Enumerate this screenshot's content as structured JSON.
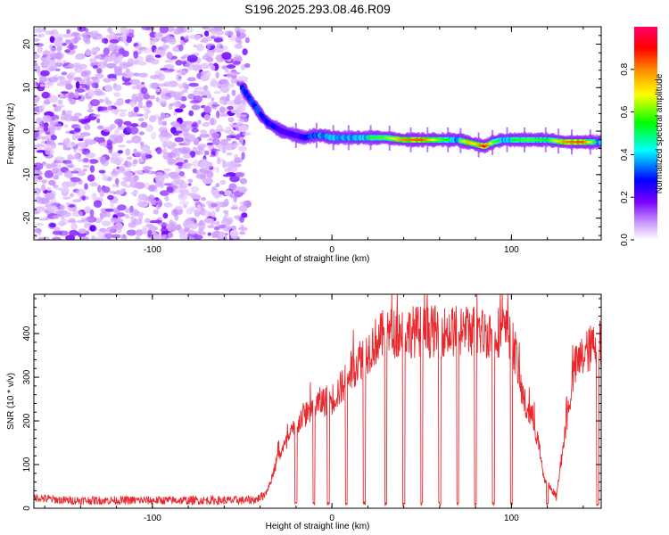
{
  "title": "S196.2025.293.08.46.R09",
  "chart_data": [
    {
      "type": "heatmap",
      "xlabel": "Height of straight line (km)",
      "ylabel": "Frequency (Hz)",
      "xlim": [
        -166,
        150
      ],
      "ylim": [
        -25,
        24
      ],
      "xticks": [
        -100,
        0,
        100
      ],
      "xtick_labels": [
        "-100",
        "0",
        "100"
      ],
      "yticks": [
        -20,
        -10,
        0,
        10,
        20
      ],
      "ytick_labels": [
        "-20",
        "-10",
        "0",
        "10",
        "20"
      ],
      "colorbar": {
        "label": "Normalized spectral amplitude",
        "range": [
          0,
          1
        ],
        "ticks": [
          0.0,
          0.2,
          0.4,
          0.6,
          0.8
        ],
        "tick_labels": [
          "0.0",
          "0.2",
          "0.4",
          "0.6",
          "0.8"
        ],
        "colors": [
          "#ffffff",
          "#cc99ff",
          "#7700ff",
          "#0000ff",
          "#00ffff",
          "#00ff00",
          "#ffff00",
          "#ff8800",
          "#ff0000",
          "#ff0066"
        ]
      },
      "trace": {
        "x": [
          -50,
          -45,
          -40,
          -36,
          -32,
          -28,
          -24,
          -20,
          -15,
          -10,
          -5,
          0,
          10,
          20,
          30,
          40,
          50,
          60,
          70,
          75,
          80,
          85,
          90,
          95,
          100,
          110,
          120,
          130,
          140,
          148
        ],
        "y": [
          10,
          7,
          4,
          2,
          1,
          0,
          -0.5,
          -1,
          -1.5,
          -1,
          -1,
          -1.5,
          -1.5,
          -1.5,
          -1.5,
          -2,
          -2,
          -2,
          -2,
          -2.5,
          -3,
          -3.5,
          -2.5,
          -2,
          -2,
          -2,
          -2,
          -2.5,
          -2.5,
          -2.5
        ],
        "amplitude": [
          0.4,
          0.4,
          0.4,
          0.35,
          0.35,
          0.3,
          0.3,
          0.3,
          0.35,
          0.45,
          0.5,
          0.5,
          0.5,
          0.55,
          0.6,
          0.8,
          0.85,
          0.6,
          0.5,
          0.75,
          0.7,
          0.9,
          0.6,
          0.5,
          0.55,
          0.6,
          0.55,
          0.8,
          0.85,
          0.5
        ]
      },
      "noise_region_x": [
        -166,
        -47
      ]
    },
    {
      "type": "line",
      "xlabel": "Height of straight line (km)",
      "ylabel": "SNR (10 * v/v)",
      "xlim": [
        -166,
        150
      ],
      "ylim": [
        0,
        490
      ],
      "xticks": [
        -100,
        0,
        100
      ],
      "xtick_labels": [
        "-100",
        "0",
        "100"
      ],
      "yticks": [
        0,
        100,
        200,
        300,
        400
      ],
      "ytick_labels": [
        "0",
        "100",
        "200",
        "300",
        "400"
      ],
      "color": "#e8282d",
      "series": [
        {
          "name": "SNR",
          "x": [
            -166,
            -150,
            -120,
            -80,
            -50,
            -42,
            -38,
            -35,
            -30,
            -25,
            -20,
            -15,
            -10,
            -5,
            0,
            5,
            10,
            15,
            20,
            25,
            30,
            40,
            50,
            60,
            70,
            80,
            85,
            90,
            95,
            100,
            103,
            105,
            108,
            112,
            115,
            118,
            125,
            130,
            135,
            140,
            145,
            150
          ],
          "y": [
            25,
            18,
            18,
            18,
            18,
            20,
            30,
            50,
            120,
            150,
            190,
            215,
            235,
            245,
            250,
            275,
            310,
            340,
            360,
            385,
            400,
            405,
            405,
            405,
            405,
            410,
            400,
            405,
            405,
            395,
            340,
            280,
            230,
            205,
            150,
            70,
            25,
            180,
            320,
            350,
            370,
            380
          ]
        }
      ],
      "dropouts_x": [
        -20,
        -10,
        -2,
        8,
        18,
        30,
        40,
        50,
        60,
        70,
        80,
        90,
        100,
        120,
        148
      ]
    }
  ]
}
